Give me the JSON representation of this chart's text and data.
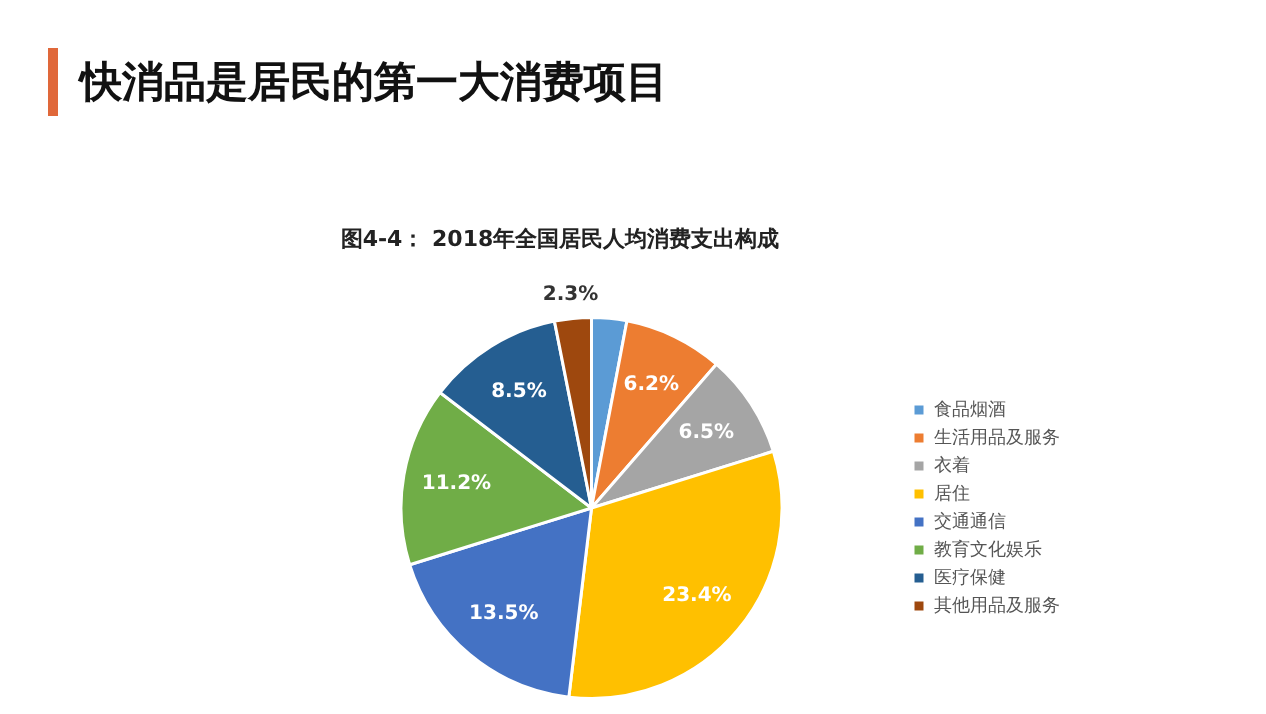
{
  "chart_data": {
    "type": "pie",
    "title": "快消品是居民的第一大消费项目",
    "subtitle": "图4-4： 2018年全国居民人均消费支出构成",
    "categories": [
      "食品烟酒",
      "生活用品及服务",
      "衣着",
      "居住",
      "交通通信",
      "教育文化娱乐",
      "医疗保健",
      "其他用品及服务"
    ],
    "values": [
      2.2,
      6.2,
      6.5,
      23.4,
      13.5,
      11.2,
      8.5,
      2.3
    ],
    "value_labels": [
      null,
      "6.2%",
      "6.5%",
      "23.4%",
      "13.5%",
      "11.2%",
      "8.5%",
      "2.3%"
    ],
    "colors": [
      "#5b9bd5",
      "#ed7d31",
      "#a5a5a5",
      "#ffc000",
      "#4472c4",
      "#70ad47",
      "#255e91",
      "#9e480e"
    ],
    "legend": "right"
  }
}
